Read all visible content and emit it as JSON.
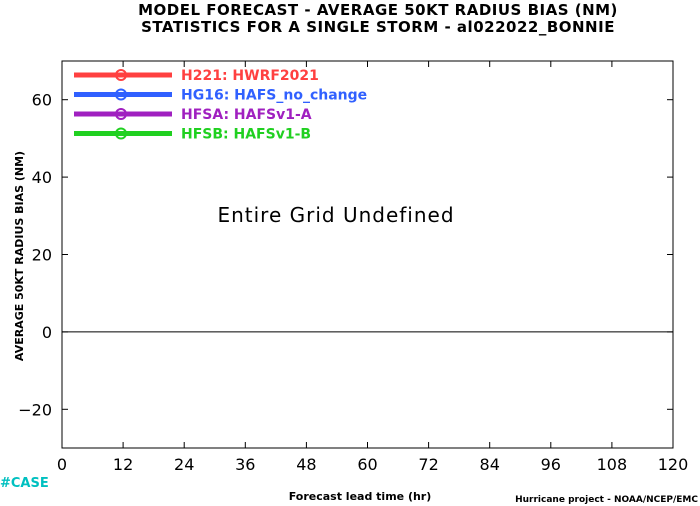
{
  "chart_data": {
    "type": "line",
    "title": "MODEL FORECAST - AVERAGE 50KT RADIUS BIAS (NM)",
    "subtitle": "STATISTICS FOR A SINGLE STORM - al022022_BONNIE",
    "xlabel": "Forecast lead time (hr)",
    "ylabel": "AVERAGE 50KT RADIUS BIAS (NM)",
    "xlim": [
      0,
      120
    ],
    "ylim": [
      -30,
      70
    ],
    "xticks": [
      0,
      12,
      24,
      36,
      48,
      60,
      72,
      84,
      96,
      108,
      120
    ],
    "yticks": [
      -20,
      0,
      20,
      40,
      60
    ],
    "reference_line_y": 0,
    "legend_position": "top-left",
    "annotation": "Entire Grid Undefined",
    "series": [
      {
        "name": "H221: HWRF2021",
        "color": "#ff4040",
        "values": []
      },
      {
        "name": "HG16: HAFS_no_change",
        "color": "#3060ff",
        "values": []
      },
      {
        "name": "HFSA: HAFSv1-A",
        "color": "#a020c0",
        "values": []
      },
      {
        "name": "HFSB: HAFSv1-B",
        "color": "#20d020",
        "values": []
      }
    ]
  },
  "footer": {
    "logo": "#CASE",
    "logo_color": "#00c0c0",
    "credit": "Hurricane project - NOAA/NCEP/EMC"
  }
}
